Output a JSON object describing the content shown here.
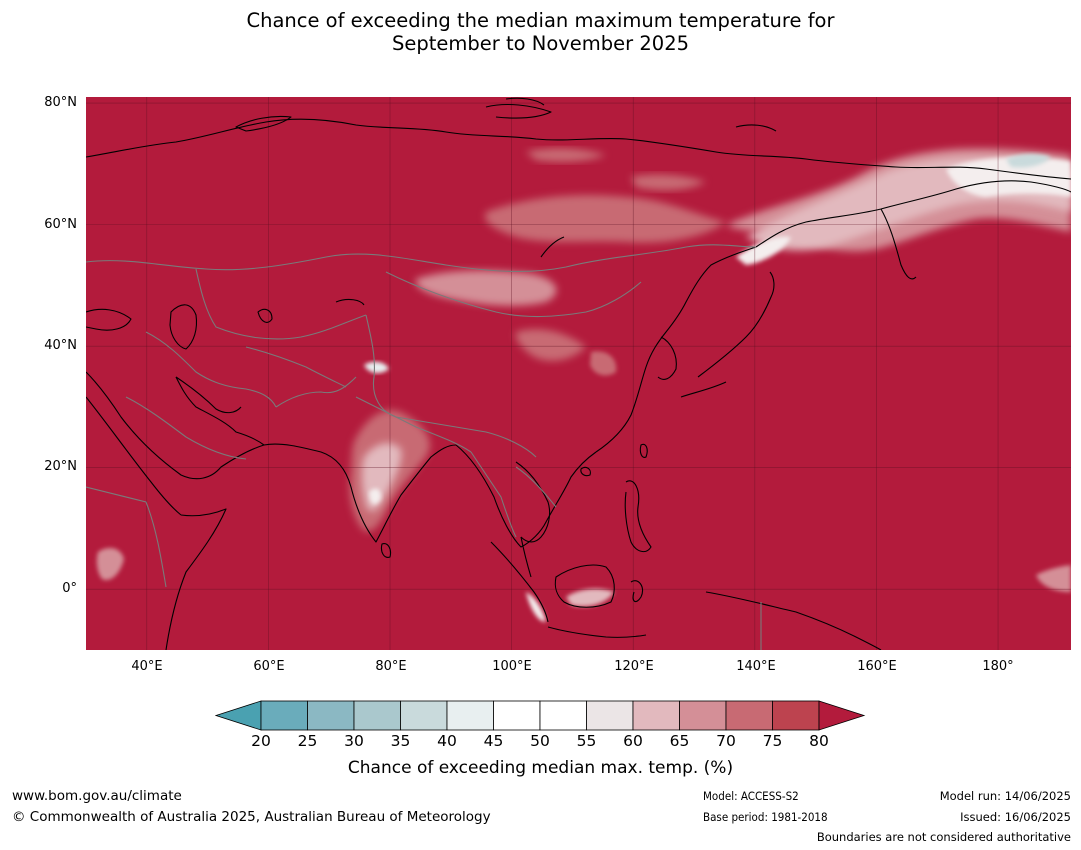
{
  "title_line1": "Chance of exceeding the median maximum temperature for",
  "title_line2": "September to November 2025",
  "map": {
    "region": "Asia",
    "lon_range": [
      30,
      192
    ],
    "lat_range": [
      -10,
      81
    ],
    "base_color": "#b31b3c",
    "lat_ticks": [
      "80°N",
      "60°N",
      "40°N",
      "20°N",
      "0°"
    ],
    "lon_ticks": [
      "40°E",
      "60°E",
      "80°E",
      "100°E",
      "120°E",
      "140°E",
      "160°E",
      "180°"
    ]
  },
  "colorbar": {
    "ticks": [
      "20",
      "25",
      "30",
      "35",
      "40",
      "45",
      "50",
      "55",
      "60",
      "65",
      "70",
      "75",
      "80"
    ],
    "colors": [
      "#6aacbb",
      "#8bb8c3",
      "#aac8cd",
      "#c9dadc",
      "#e8eff0",
      "#ffffff",
      "#ffffff",
      "#ebe5e6",
      "#e2b9be",
      "#d48f97",
      "#c86a73",
      "#bd434f"
    ],
    "under_color": "#4aa1b1",
    "over_color": "#b31b3c",
    "label": "Chance of exceeding median max. temp. (%)"
  },
  "footer": {
    "website": "www.bom.gov.au/climate",
    "copyright": "© Commonwealth of Australia 2025, Australian Bureau of Meteorology",
    "model": "Model: ACCESS-S2",
    "base_period": "Base period: 1981-2018",
    "model_run": "Model run: 14/06/2025",
    "issued": "Issued: 16/06/2025",
    "disclaimer": "Boundaries are not considered authoritative"
  }
}
